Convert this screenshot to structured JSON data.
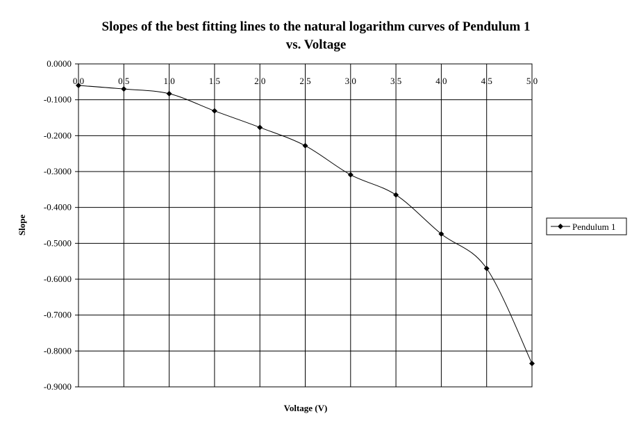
{
  "chart_data": {
    "type": "line",
    "title_line1": "Slopes of the best fitting lines to the natural logarithm curves of Pendulum 1",
    "title_line2": "vs. Voltage",
    "xlabel": "Voltage (V)",
    "ylabel": "Slope",
    "xlim": [
      0,
      5
    ],
    "ylim": [
      -0.9,
      0
    ],
    "x_ticks": [
      "0.0",
      "0.5",
      "1.0",
      "1.5",
      "2.0",
      "2.5",
      "3.0",
      "3.5",
      "4.0",
      "4.5",
      "5.0"
    ],
    "y_ticks": [
      "0.0000",
      "-0.1000",
      "-0.2000",
      "-0.3000",
      "-0.4000",
      "-0.5000",
      "-0.6000",
      "-0.7000",
      "-0.8000",
      "-0.9000"
    ],
    "grid": true,
    "legend_position": "right",
    "series": [
      {
        "name": "Pendulum 1",
        "color": "#000000",
        "marker": "diamond",
        "x": [
          0.0,
          0.5,
          1.0,
          1.5,
          2.0,
          2.5,
          3.0,
          3.5,
          4.0,
          4.5,
          5.0
        ],
        "y": [
          -0.06,
          -0.07,
          -0.083,
          -0.131,
          -0.177,
          -0.228,
          -0.309,
          -0.365,
          -0.474,
          -0.57,
          -0.835
        ]
      }
    ]
  }
}
